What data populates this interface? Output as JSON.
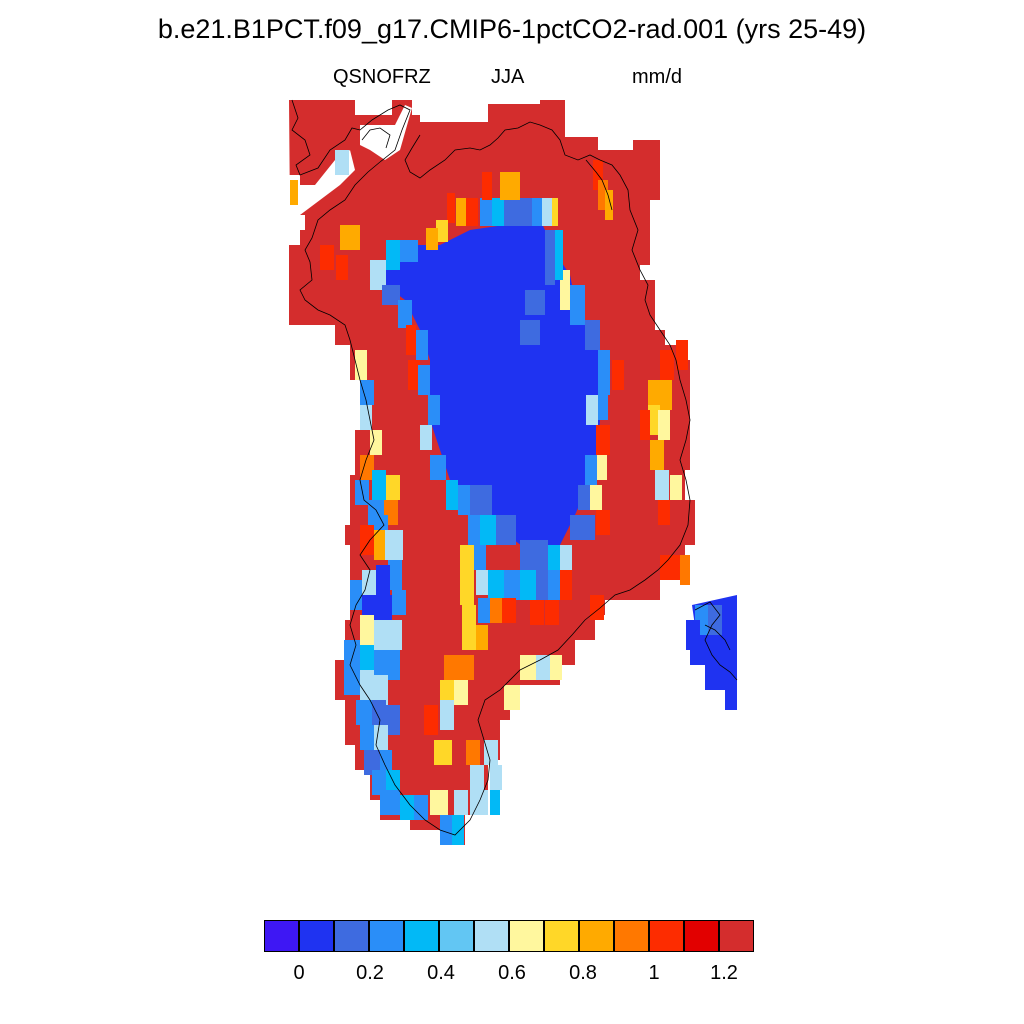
{
  "title": "b.e21.B1PCT.f09_g17.CMIP6-1pctCO2-rad.001 (yrs 25-49)",
  "variable": "QSNOFRZ",
  "season": "JJA",
  "units": "mm/d",
  "region": "Greenland",
  "colorbar": {
    "colors": [
      "#3e17f4",
      "#1f33f1",
      "#3e6be0",
      "#2a8ef8",
      "#02b9f6",
      "#62c6f3",
      "#b0dff5",
      "#fff79e",
      "#ffd728",
      "#ffaa00",
      "#ff7800",
      "#fd2c00",
      "#e20000",
      "#d42d2d"
    ],
    "tick_labels": [
      "0",
      "0.2",
      "0.4",
      "0.6",
      "0.8",
      "1",
      "1.2"
    ]
  },
  "map": {
    "cell_classes": {
      "ice_interior": "#1f33f1",
      "ice_margin_blue": "#3e6be0",
      "margin_midblue": "#2a8ef8",
      "margin_cyan": "#02b9f6",
      "margin_lightblue": "#b0dff5",
      "margin_yellow": "#fff79e",
      "margin_gold": "#ffd728",
      "margin_orange": "#ffaa00",
      "margin_darkorange": "#ff7800",
      "margin_red": "#fd2c00",
      "coastal_background": "#d42d2d"
    }
  }
}
